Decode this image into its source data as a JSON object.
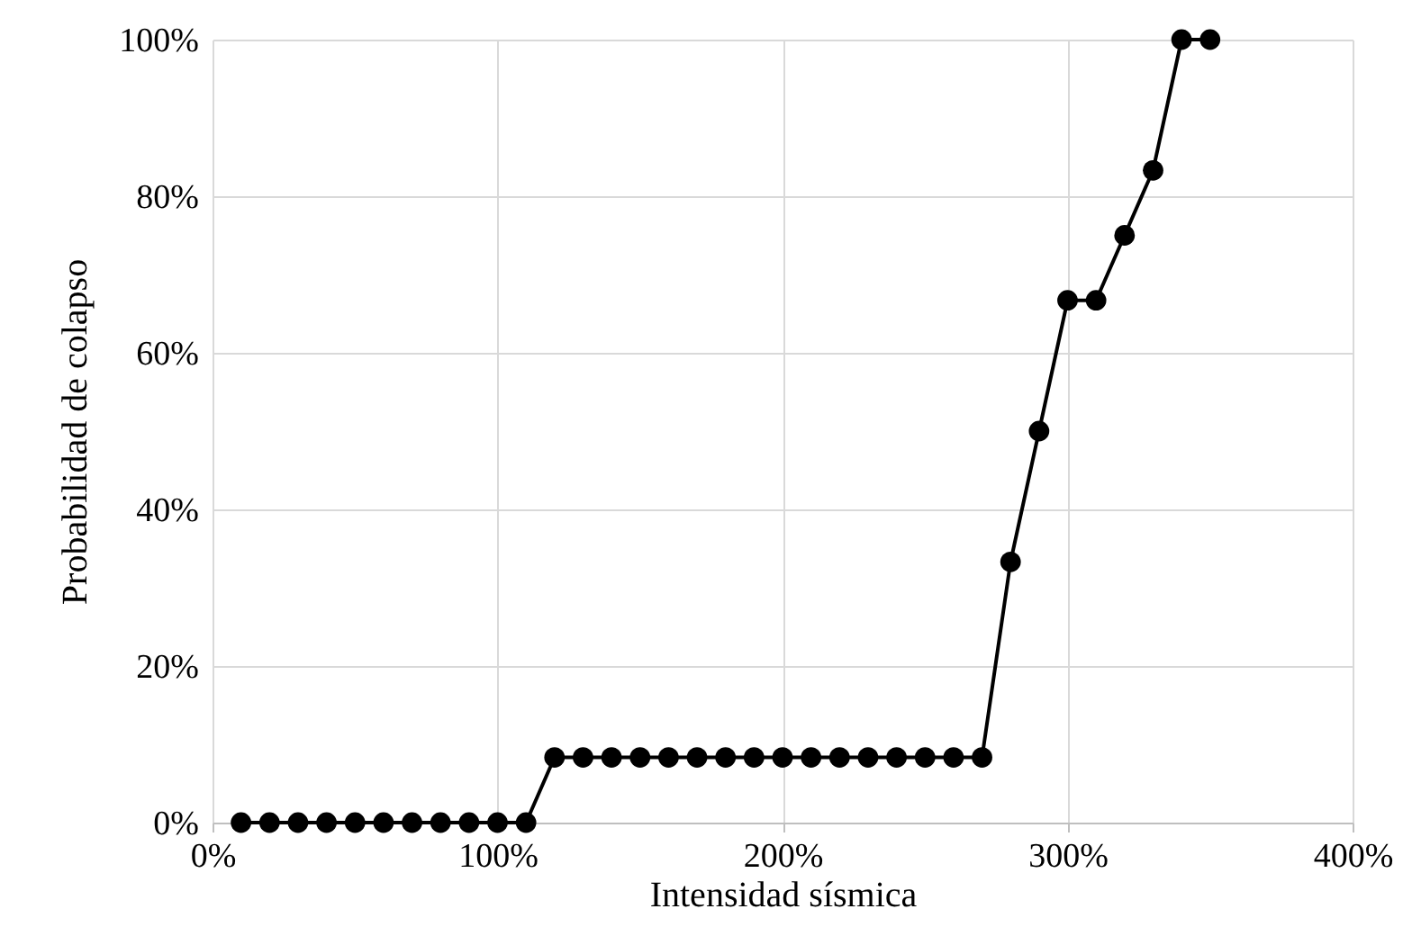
{
  "chart_data": {
    "type": "line",
    "xlabel": "Intensidad sísmica",
    "ylabel": "Probabilidad de colapso",
    "x": [
      10,
      20,
      30,
      40,
      50,
      60,
      70,
      80,
      90,
      100,
      110,
      120,
      130,
      140,
      150,
      160,
      170,
      180,
      190,
      200,
      210,
      220,
      230,
      240,
      250,
      260,
      270,
      280,
      290,
      300,
      310,
      320,
      330,
      340,
      350
    ],
    "series": [
      {
        "color": "#000000",
        "values": [
          0,
          0,
          0,
          0,
          0,
          0,
          0,
          0,
          0,
          0,
          0,
          8.33,
          8.33,
          8.33,
          8.33,
          8.33,
          8.33,
          8.33,
          8.33,
          8.33,
          8.33,
          8.33,
          8.33,
          8.33,
          8.33,
          8.33,
          8.33,
          33.3,
          50,
          66.7,
          66.7,
          75,
          83.3,
          100,
          100
        ]
      }
    ],
    "xlim": [
      0,
      400
    ],
    "xticks": [
      {
        "value": 0,
        "label": "0%"
      },
      {
        "value": 100,
        "label": "100%"
      },
      {
        "value": 200,
        "label": "200%"
      },
      {
        "value": 300,
        "label": "300%"
      },
      {
        "value": 400,
        "label": "400%"
      }
    ],
    "ylim": [
      0,
      100
    ],
    "yticks": [
      {
        "value": 0,
        "label": "0%"
      },
      {
        "value": 20,
        "label": "20%"
      },
      {
        "value": 40,
        "label": "40%"
      },
      {
        "value": 60,
        "label": "60%"
      },
      {
        "value": 80,
        "label": "80%"
      },
      {
        "value": 100,
        "label": "100%"
      }
    ],
    "grid": true,
    "marker": "circle",
    "line_style": "solid"
  }
}
